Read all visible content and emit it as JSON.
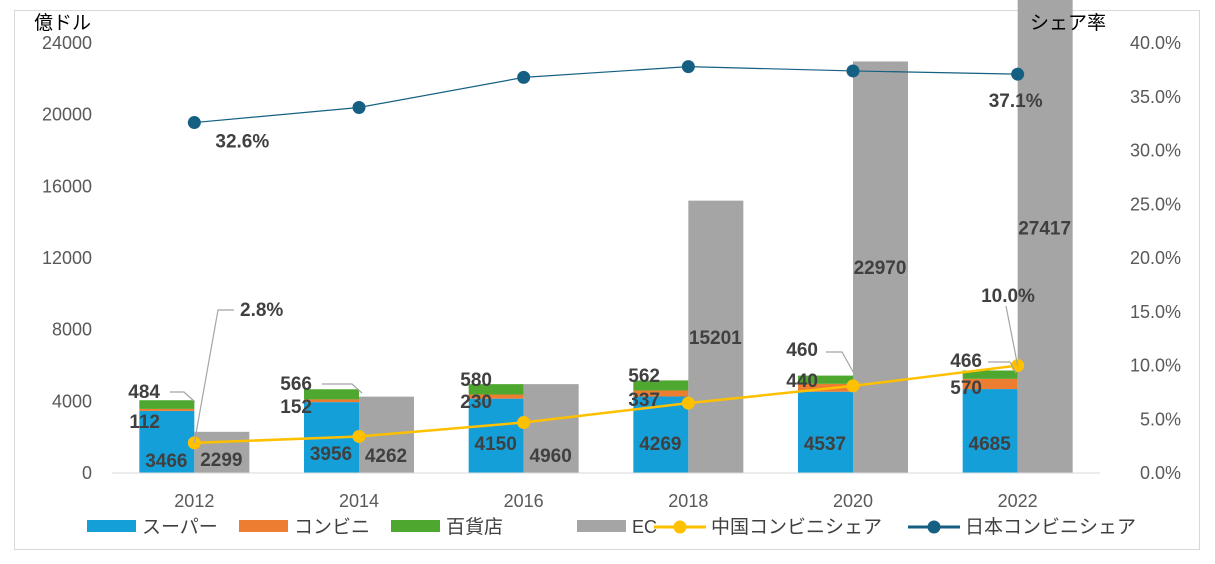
{
  "chart_data": {
    "type": "bar",
    "categories": [
      "2012",
      "2014",
      "2016",
      "2018",
      "2020",
      "2022"
    ],
    "stacked_series": [
      {
        "name": "スーパー",
        "color": "#159fd8",
        "values": [
          3466,
          3956,
          4150,
          4269,
          4537,
          4685
        ]
      },
      {
        "name": "コンビニ",
        "color": "#ed7d31",
        "values": [
          112,
          152,
          230,
          337,
          440,
          570
        ]
      },
      {
        "name": "百貨店",
        "color": "#4ea72e",
        "values": [
          484,
          566,
          580,
          562,
          460,
          466
        ]
      }
    ],
    "bar_series": {
      "name": "EC",
      "color": "#a5a5a5",
      "values": [
        2299,
        4262,
        4960,
        15201,
        22970,
        27417
      ]
    },
    "line_series": [
      {
        "name": "中国コンビニシェア",
        "color": "#ffc000",
        "values": [
          2.8,
          3.4,
          4.7,
          6.5,
          8.1,
          10.0
        ],
        "unit": "%",
        "labels": [
          "2.8%",
          "",
          "",
          "",
          "",
          "10.0%"
        ]
      },
      {
        "name": "日本コンビニシェア",
        "color": "#156082",
        "values": [
          32.6,
          34.0,
          36.8,
          37.8,
          37.4,
          37.1
        ],
        "unit": "%",
        "labels": [
          "32.6%",
          "",
          "",
          "",
          "",
          "37.1%"
        ]
      }
    ],
    "ylabel_left": "億ドル",
    "ylabel_right": "シェア率",
    "ylim_left": [
      0,
      24000
    ],
    "yticks_left": [
      "0",
      "4000",
      "8000",
      "12000",
      "16000",
      "20000",
      "24000"
    ],
    "ylim_right": [
      0,
      40
    ],
    "yticks_right": [
      "0.0%",
      "5.0%",
      "10.0%",
      "15.0%",
      "20.0%",
      "25.0%",
      "30.0%",
      "35.0%",
      "40.0%"
    ],
    "grid": false,
    "legend_position": "bottom"
  }
}
